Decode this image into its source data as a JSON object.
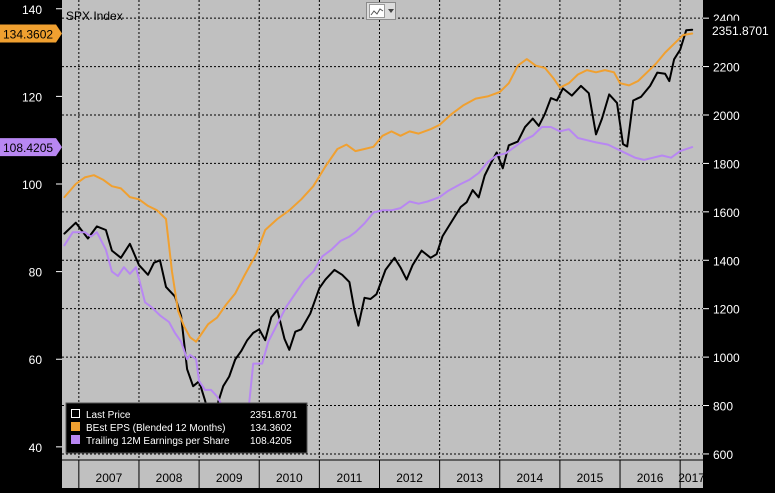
{
  "chart_data": {
    "type": "line",
    "title": "SPX Index",
    "background_color": "#c0c0c0",
    "grid": true,
    "legend_position": "bottom-left",
    "x_tick_labels": [
      "2007",
      "2008",
      "2009",
      "2010",
      "2011",
      "2012",
      "2013",
      "2014",
      "2015",
      "2016",
      "2017"
    ],
    "x_range": [
      2006.72,
      2017.38
    ],
    "y_left": {
      "range": [
        37,
        142
      ],
      "ticks": [
        40,
        60,
        80,
        100,
        120,
        140
      ],
      "labels": [
        "40",
        "60",
        "80",
        "100",
        "120",
        "140"
      ]
    },
    "y_right": {
      "range": [
        575,
        2475
      ],
      "ticks": [
        600,
        800,
        1000,
        1200,
        1400,
        1600,
        1800,
        2000,
        2200,
        2400
      ],
      "labels": [
        "600",
        "800",
        "1000",
        "1200",
        "1400",
        "1600",
        "1800",
        "2000",
        "2200",
        "2400"
      ]
    },
    "series": [
      {
        "name": "Last Price",
        "axis": "right",
        "color": "#000000",
        "last_value": "2351.8701",
        "points": [
          [
            2006.76,
            1510
          ],
          [
            2006.95,
            1555
          ],
          [
            2007.15,
            1490
          ],
          [
            2007.3,
            1540
          ],
          [
            2007.45,
            1525
          ],
          [
            2007.55,
            1440
          ],
          [
            2007.7,
            1410
          ],
          [
            2007.85,
            1468
          ],
          [
            2008.0,
            1380
          ],
          [
            2008.15,
            1340
          ],
          [
            2008.25,
            1390
          ],
          [
            2008.35,
            1400
          ],
          [
            2008.45,
            1290
          ],
          [
            2008.6,
            1250
          ],
          [
            2008.7,
            1170
          ],
          [
            2008.8,
            950
          ],
          [
            2008.9,
            880
          ],
          [
            2009.0,
            900
          ],
          [
            2009.1,
            820
          ],
          [
            2009.19,
            735
          ],
          [
            2009.3,
            800
          ],
          [
            2009.4,
            880
          ],
          [
            2009.5,
            920
          ],
          [
            2009.6,
            990
          ],
          [
            2009.7,
            1025
          ],
          [
            2009.8,
            1070
          ],
          [
            2009.9,
            1100
          ],
          [
            2010.0,
            1115
          ],
          [
            2010.1,
            1070
          ],
          [
            2010.2,
            1165
          ],
          [
            2010.3,
            1195
          ],
          [
            2010.42,
            1075
          ],
          [
            2010.5,
            1030
          ],
          [
            2010.6,
            1105
          ],
          [
            2010.7,
            1115
          ],
          [
            2010.85,
            1180
          ],
          [
            2011.0,
            1285
          ],
          [
            2011.1,
            1320
          ],
          [
            2011.25,
            1360
          ],
          [
            2011.38,
            1340
          ],
          [
            2011.5,
            1310
          ],
          [
            2011.58,
            1200
          ],
          [
            2011.65,
            1130
          ],
          [
            2011.75,
            1245
          ],
          [
            2011.85,
            1240
          ],
          [
            2011.95,
            1260
          ],
          [
            2012.1,
            1360
          ],
          [
            2012.25,
            1410
          ],
          [
            2012.35,
            1370
          ],
          [
            2012.45,
            1320
          ],
          [
            2012.55,
            1380
          ],
          [
            2012.7,
            1440
          ],
          [
            2012.85,
            1410
          ],
          [
            2012.95,
            1425
          ],
          [
            2013.05,
            1500
          ],
          [
            2013.2,
            1560
          ],
          [
            2013.35,
            1620
          ],
          [
            2013.45,
            1640
          ],
          [
            2013.55,
            1690
          ],
          [
            2013.65,
            1660
          ],
          [
            2013.75,
            1750
          ],
          [
            2013.85,
            1800
          ],
          [
            2013.95,
            1845
          ],
          [
            2014.05,
            1780
          ],
          [
            2014.15,
            1875
          ],
          [
            2014.3,
            1890
          ],
          [
            2014.42,
            1950
          ],
          [
            2014.55,
            1985
          ],
          [
            2014.65,
            1955
          ],
          [
            2014.75,
            2005
          ],
          [
            2014.85,
            2070
          ],
          [
            2014.95,
            2060
          ],
          [
            2015.05,
            2110
          ],
          [
            2015.2,
            2080
          ],
          [
            2015.35,
            2120
          ],
          [
            2015.48,
            2090
          ],
          [
            2015.6,
            1920
          ],
          [
            2015.7,
            1985
          ],
          [
            2015.82,
            2085
          ],
          [
            2015.95,
            2050
          ],
          [
            2016.05,
            1880
          ],
          [
            2016.12,
            1870
          ],
          [
            2016.22,
            2060
          ],
          [
            2016.35,
            2075
          ],
          [
            2016.5,
            2120
          ],
          [
            2016.62,
            2175
          ],
          [
            2016.75,
            2170
          ],
          [
            2016.82,
            2140
          ],
          [
            2016.9,
            2230
          ],
          [
            2017.0,
            2270
          ],
          [
            2017.1,
            2350
          ],
          [
            2017.2,
            2352
          ]
        ]
      },
      {
        "name": "BEst EPS (Blended 12 Months)",
        "axis": "left",
        "color": "#f0a030",
        "last_value": "134.3602",
        "points": [
          [
            2006.76,
            97
          ],
          [
            2006.95,
            100
          ],
          [
            2007.1,
            101.5
          ],
          [
            2007.25,
            102
          ],
          [
            2007.4,
            101
          ],
          [
            2007.55,
            99.5
          ],
          [
            2007.7,
            99
          ],
          [
            2007.85,
            97
          ],
          [
            2008.0,
            96.5
          ],
          [
            2008.15,
            95
          ],
          [
            2008.3,
            94
          ],
          [
            2008.45,
            92
          ],
          [
            2008.55,
            80
          ],
          [
            2008.65,
            71
          ],
          [
            2008.75,
            67.5
          ],
          [
            2008.85,
            65
          ],
          [
            2008.95,
            64
          ],
          [
            2009.05,
            66
          ],
          [
            2009.15,
            68
          ],
          [
            2009.3,
            69.5
          ],
          [
            2009.45,
            72.5
          ],
          [
            2009.6,
            75
          ],
          [
            2009.75,
            79
          ],
          [
            2009.95,
            84
          ],
          [
            2010.1,
            89.5
          ],
          [
            2010.3,
            92
          ],
          [
            2010.5,
            94
          ],
          [
            2010.7,
            96.5
          ],
          [
            2010.9,
            99.5
          ],
          [
            2011.1,
            104
          ],
          [
            2011.3,
            108
          ],
          [
            2011.45,
            109
          ],
          [
            2011.6,
            107.5
          ],
          [
            2011.75,
            108
          ],
          [
            2011.9,
            108.5
          ],
          [
            2012.05,
            111
          ],
          [
            2012.2,
            112
          ],
          [
            2012.35,
            111
          ],
          [
            2012.5,
            112
          ],
          [
            2012.65,
            111.5
          ],
          [
            2012.85,
            112.5
          ],
          [
            2013.0,
            113.5
          ],
          [
            2013.2,
            116
          ],
          [
            2013.4,
            118
          ],
          [
            2013.6,
            119.5
          ],
          [
            2013.8,
            120
          ],
          [
            2014.0,
            121
          ],
          [
            2014.15,
            123
          ],
          [
            2014.3,
            127
          ],
          [
            2014.45,
            128.5
          ],
          [
            2014.6,
            127
          ],
          [
            2014.75,
            126.5
          ],
          [
            2014.9,
            124
          ],
          [
            2015.0,
            122
          ],
          [
            2015.15,
            123
          ],
          [
            2015.3,
            125
          ],
          [
            2015.45,
            126
          ],
          [
            2015.6,
            125.5
          ],
          [
            2015.75,
            126
          ],
          [
            2015.9,
            125.5
          ],
          [
            2016.0,
            123
          ],
          [
            2016.15,
            122.5
          ],
          [
            2016.3,
            123.5
          ],
          [
            2016.45,
            125.5
          ],
          [
            2016.6,
            127.5
          ],
          [
            2016.75,
            130
          ],
          [
            2016.9,
            132
          ],
          [
            2017.05,
            134
          ],
          [
            2017.2,
            134.36
          ]
        ]
      },
      {
        "name": "Trailing 12M Earnings per Share",
        "axis": "left",
        "color": "#b887f2",
        "last_value": "108.4205",
        "points": [
          [
            2006.76,
            86
          ],
          [
            2006.9,
            89
          ],
          [
            2007.1,
            89
          ],
          [
            2007.2,
            88
          ],
          [
            2007.3,
            89
          ],
          [
            2007.45,
            85
          ],
          [
            2007.55,
            80
          ],
          [
            2007.65,
            79
          ],
          [
            2007.75,
            81
          ],
          [
            2007.85,
            79.5
          ],
          [
            2007.95,
            81
          ],
          [
            2008.1,
            73
          ],
          [
            2008.2,
            72
          ],
          [
            2008.35,
            70
          ],
          [
            2008.5,
            68.5
          ],
          [
            2008.6,
            66
          ],
          [
            2008.7,
            64
          ],
          [
            2008.8,
            60
          ],
          [
            2008.85,
            61
          ],
          [
            2008.95,
            60
          ],
          [
            2009.0,
            55
          ],
          [
            2009.1,
            53
          ],
          [
            2009.2,
            53
          ],
          [
            2009.3,
            51.5
          ],
          [
            2009.4,
            49
          ],
          [
            2009.5,
            49
          ],
          [
            2009.6,
            46
          ],
          [
            2009.7,
            45.5
          ],
          [
            2009.8,
            45.5
          ],
          [
            2009.9,
            59
          ],
          [
            2010.05,
            59
          ],
          [
            2010.15,
            64
          ],
          [
            2010.3,
            68
          ],
          [
            2010.45,
            72
          ],
          [
            2010.6,
            75
          ],
          [
            2010.75,
            78
          ],
          [
            2010.9,
            80
          ],
          [
            2011.05,
            83.5
          ],
          [
            2011.2,
            85
          ],
          [
            2011.35,
            87
          ],
          [
            2011.5,
            88
          ],
          [
            2011.6,
            89
          ],
          [
            2011.75,
            91
          ],
          [
            2011.9,
            93.5
          ],
          [
            2012.05,
            94
          ],
          [
            2012.2,
            94
          ],
          [
            2012.35,
            94.5
          ],
          [
            2012.5,
            96
          ],
          [
            2012.65,
            95.5
          ],
          [
            2012.8,
            96
          ],
          [
            2013.0,
            97
          ],
          [
            2013.15,
            98.5
          ],
          [
            2013.35,
            100
          ],
          [
            2013.5,
            101
          ],
          [
            2013.65,
            102.5
          ],
          [
            2013.8,
            105
          ],
          [
            2013.95,
            106.5
          ],
          [
            2014.1,
            107
          ],
          [
            2014.25,
            108.5
          ],
          [
            2014.4,
            110
          ],
          [
            2014.55,
            111
          ],
          [
            2014.7,
            113
          ],
          [
            2014.85,
            113
          ],
          [
            2015.0,
            112
          ],
          [
            2015.15,
            112.5
          ],
          [
            2015.3,
            110.5
          ],
          [
            2015.45,
            110
          ],
          [
            2015.6,
            109.5
          ],
          [
            2015.8,
            109
          ],
          [
            2015.95,
            108
          ],
          [
            2016.1,
            107
          ],
          [
            2016.25,
            106
          ],
          [
            2016.4,
            105.5
          ],
          [
            2016.55,
            106
          ],
          [
            2016.7,
            106.5
          ],
          [
            2016.85,
            106
          ],
          [
            2017.0,
            107.5
          ],
          [
            2017.2,
            108.42
          ]
        ]
      }
    ]
  }
}
